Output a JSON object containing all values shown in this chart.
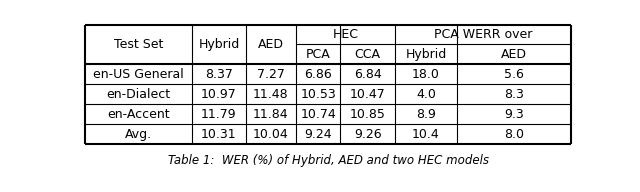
{
  "rows": [
    [
      "en-US General",
      "8.37",
      "7.27",
      "6.86",
      "6.84",
      "18.0",
      "5.6"
    ],
    [
      "en-Dialect",
      "10.97",
      "11.48",
      "10.53",
      "10.47",
      "4.0",
      "8.3"
    ],
    [
      "en-Accent",
      "11.79",
      "11.84",
      "10.74",
      "10.85",
      "8.9",
      "9.3"
    ],
    [
      "Avg.",
      "10.31",
      "10.04",
      "9.24",
      "9.26",
      "10.4",
      "8.0"
    ]
  ],
  "caption": "Table 1: WER\\u0025 (\\%) of Hybrid, AED and two HEC models",
  "figsize": [
    6.4,
    1.92
  ],
  "dpi": 100,
  "font_size": 9.0,
  "caption_font_size": 8.5
}
